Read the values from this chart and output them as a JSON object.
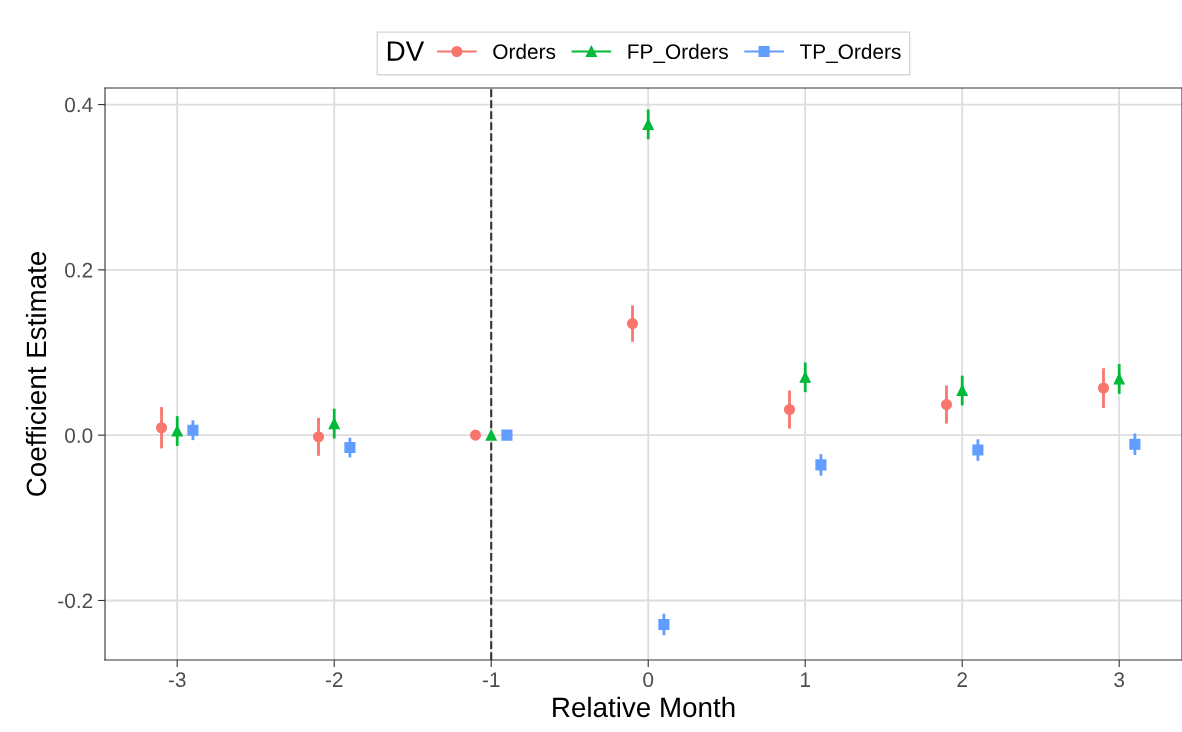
{
  "chart_data": {
    "type": "scatter",
    "xlabel": "Relative Month",
    "ylabel": "Coefficient Estimate",
    "legend_title": "DV",
    "legend": "top",
    "grid": true,
    "xlim": [
      -3.46,
      3.4
    ],
    "ylim": [
      -0.272,
      0.42
    ],
    "xticks": [
      -3,
      -2,
      -1,
      0,
      1,
      2,
      3
    ],
    "yticks": [
      {
        "value": -0.2,
        "label": "-0.2"
      },
      {
        "value": 0,
        "label": "0.0"
      },
      {
        "value": 0.2,
        "label": "0.2"
      },
      {
        "value": 0.4,
        "label": "0.4"
      }
    ],
    "ref_lines": [
      {
        "axis": "x",
        "value": -1,
        "color": "#333333",
        "line_style": "dashed"
      }
    ],
    "series": [
      {
        "name": "Orders",
        "color": "#f8766d",
        "marker": "circle",
        "x": [
          -3.1,
          -2.1,
          -1.1,
          -0.1,
          0.9,
          1.9,
          2.9
        ],
        "values": [
          0.009,
          -0.002,
          0,
          0.135,
          0.031,
          0.037,
          0.057
        ],
        "errors": [
          0.025,
          0.023,
          null,
          0.022,
          0.023,
          0.023,
          0.024
        ]
      },
      {
        "name": "FP_Orders",
        "color": "#00ba38",
        "marker": "triangle",
        "x": [
          -3,
          -2,
          -1,
          0,
          1,
          2,
          3
        ],
        "values": [
          0.005,
          0.014,
          0,
          0.376,
          0.07,
          0.054,
          0.068
        ],
        "errors": [
          0.018,
          0.018,
          null,
          0.018,
          0.018,
          0.018,
          0.018
        ]
      },
      {
        "name": "TP_Orders",
        "color": "#619cff",
        "marker": "square",
        "x": [
          -2.9,
          -1.9,
          -0.9,
          0.1,
          1.1,
          2.1,
          3.1
        ],
        "values": [
          0.006,
          -0.015,
          0,
          -0.229,
          -0.036,
          -0.018,
          -0.011
        ],
        "errors": [
          0.012,
          0.012,
          null,
          0.013,
          0.013,
          0.013,
          0.013
        ]
      }
    ]
  }
}
